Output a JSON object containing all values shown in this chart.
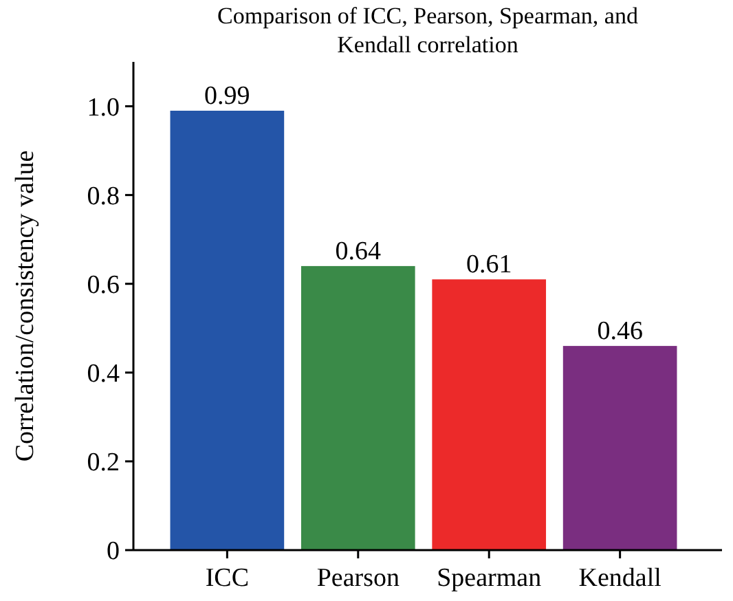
{
  "chart_data": {
    "type": "bar",
    "title": "Comparison of ICC, Pearson, Spearman, and Kendall correlation",
    "ylabel": "Correlation/consistency value",
    "categories": [
      "ICC",
      "Pearson",
      "Spearman",
      "Kendall"
    ],
    "values": [
      0.99,
      0.64,
      0.61,
      0.46
    ],
    "colors": [
      "#2455a8",
      "#3a8a48",
      "#ec2a2a",
      "#7a2e80"
    ],
    "ylim": [
      0,
      1.1
    ],
    "yticks": [
      0,
      0.2,
      0.4,
      0.6,
      0.8,
      {
        "value": 1.0,
        "label": "1.0"
      }
    ],
    "data_labels": true
  }
}
